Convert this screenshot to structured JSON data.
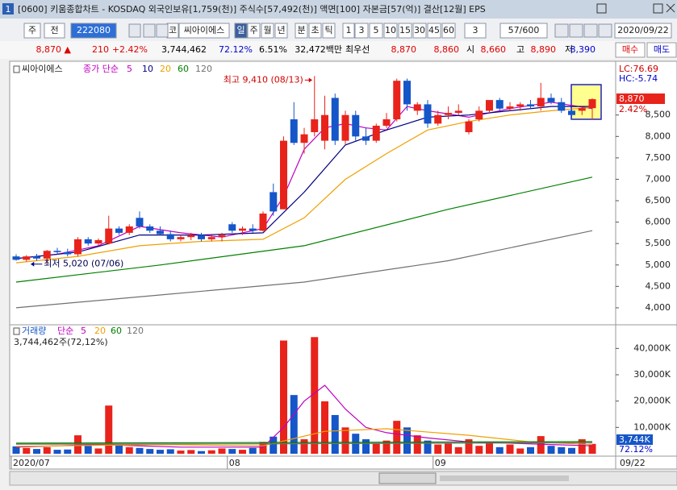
{
  "title_bar": {
    "id": "1",
    "text": "[0600] 키움종합차트 - KOSDAQ 외국인보유[1,759(천)] 주식수[57,492(천)] 액면[100] 자본금[57(억)] 결산[12월] EPS"
  },
  "toolbar": {
    "items": [
      "주",
      "전",
      "222080",
      "코",
      "씨아이에스",
      "일",
      "주",
      "월",
      "년",
      "분",
      "초",
      "틱",
      "1",
      "3",
      "5",
      "10",
      "15",
      "30",
      "45",
      "60",
      "3",
      "57/600",
      "2020/09/22"
    ],
    "selected": 5
  },
  "info": {
    "items": [
      "8,870 ▲",
      "210",
      "+2.42%",
      "3,744,462",
      "72.12%",
      "6.51%",
      "32,472백만",
      "최우선",
      "8,870",
      "8,860",
      "시",
      "8,660",
      "고",
      "8,890",
      "저",
      "8,390",
      "매수",
      "매도"
    ],
    "colors": [
      "#e00000",
      "#e00000",
      "#e00000",
      "#000000",
      "#0000d0",
      "#000000",
      "#000000",
      "#000000",
      "#e00000",
      "#e00000",
      "#000000",
      "#e00000",
      "#000000",
      "#e00000",
      "#000000",
      "#0000d0",
      "#e00000",
      "#0000d0"
    ]
  },
  "chart_data": [
    {
      "type": "candlestick",
      "name": "씨아이에스",
      "ma_label": "종가 단순",
      "categories": [
        "2020/07",
        null,
        null,
        null,
        null,
        null,
        null,
        null,
        null,
        null,
        null,
        null,
        null,
        null,
        null,
        null,
        null,
        null,
        null,
        null,
        null,
        "08",
        null,
        null,
        null,
        null,
        null,
        null,
        null,
        null,
        null,
        null,
        null,
        null,
        null,
        null,
        null,
        null,
        null,
        null,
        null,
        "09",
        null,
        null,
        null,
        null,
        null,
        null,
        null,
        null,
        null,
        null,
        null,
        null,
        null,
        null,
        null
      ],
      "last_date": "09/22",
      "open": [
        5200,
        5120,
        5200,
        5150,
        5330,
        5300,
        5250,
        5600,
        5500,
        5500,
        5850,
        5750,
        6100,
        5900,
        5800,
        5720,
        5600,
        5650,
        5700,
        5600,
        5650,
        5950,
        5800,
        5850,
        5800,
        6700,
        6300,
        8400,
        7850,
        8100,
        7900,
        8900,
        7900,
        8500,
        8000,
        7900,
        8250,
        8400,
        9300,
        8600,
        8750,
        8300,
        8500,
        8550,
        8100,
        8400,
        8600,
        8850,
        8650,
        8700,
        8750,
        8700,
        8900,
        8800,
        8600,
        8600,
        8660
      ],
      "high": [
        5250,
        5230,
        5260,
        5350,
        5400,
        5380,
        5650,
        5650,
        5620,
        6150,
        5900,
        5950,
        6250,
        5950,
        5900,
        5800,
        5700,
        5750,
        5750,
        5700,
        5750,
        6000,
        5900,
        5950,
        6250,
        6900,
        8000,
        8800,
        8200,
        9410,
        8950,
        9000,
        8600,
        8600,
        8200,
        8300,
        8550,
        9350,
        9350,
        8800,
        8850,
        8600,
        8700,
        8750,
        8400,
        8700,
        8850,
        8900,
        8800,
        8800,
        8850,
        9250,
        9000,
        8900,
        8700,
        8700,
        8890
      ],
      "low": [
        5100,
        5080,
        5100,
        5020,
        5250,
        5200,
        5200,
        5450,
        5450,
        5480,
        5700,
        5700,
        5850,
        5750,
        5700,
        5550,
        5550,
        5580,
        5550,
        5550,
        5550,
        5750,
        5700,
        5750,
        5780,
        6150,
        6300,
        7800,
        7600,
        8000,
        7700,
        7800,
        7800,
        7900,
        7800,
        7850,
        8200,
        8350,
        8600,
        8500,
        8200,
        8250,
        8400,
        8500,
        8050,
        8350,
        8550,
        8600,
        8600,
        8600,
        8650,
        8600,
        8750,
        8550,
        8400,
        8500,
        8390
      ],
      "close": [
        5120,
        5200,
        5150,
        5330,
        5300,
        5250,
        5600,
        5500,
        5580,
        5850,
        5750,
        5900,
        5900,
        5800,
        5720,
        5600,
        5650,
        5700,
        5600,
        5650,
        5700,
        5800,
        5850,
        5800,
        6200,
        6250,
        7900,
        7850,
        8050,
        8400,
        8500,
        7900,
        8500,
        8000,
        7900,
        8250,
        8400,
        9300,
        8750,
        8750,
        8300,
        8500,
        8550,
        8600,
        8350,
        8600,
        8850,
        8650,
        8700,
        8750,
        8700,
        8900,
        8800,
        8600,
        8500,
        8660,
        8870
      ],
      "up_color": "#e8231b",
      "down_color": "#1556c8",
      "ma": [
        {
          "name": "5",
          "color": "#c000c0",
          "x": [
            0,
            4,
            8,
            12,
            16,
            20,
            24,
            26,
            28,
            30,
            32,
            34,
            36,
            38,
            40,
            44,
            48,
            52,
            56
          ],
          "values": [
            5150,
            5250,
            5450,
            5900,
            5750,
            5650,
            5850,
            6600,
            7700,
            8200,
            8300,
            8200,
            8150,
            8700,
            8600,
            8450,
            8650,
            8800,
            8650
          ]
        },
        {
          "name": "10",
          "color": "#000080",
          "x": [
            0,
            6,
            12,
            18,
            24,
            28,
            32,
            36,
            40,
            44,
            48,
            52,
            56
          ],
          "values": [
            5150,
            5300,
            5700,
            5700,
            5750,
            6700,
            7800,
            8150,
            8450,
            8500,
            8600,
            8700,
            8700
          ]
        },
        {
          "name": "20",
          "color": "#f0a000",
          "x": [
            0,
            6,
            12,
            18,
            24,
            28,
            32,
            36,
            40,
            44,
            48,
            52,
            56
          ],
          "values": [
            5050,
            5200,
            5450,
            5550,
            5600,
            6100,
            7000,
            7600,
            8150,
            8350,
            8500,
            8600,
            8680
          ]
        },
        {
          "name": "60",
          "color": "#008000",
          "x": [
            0,
            14,
            28,
            42,
            56
          ],
          "values": [
            4600,
            5000,
            5450,
            6300,
            7050
          ]
        },
        {
          "name": "120",
          "color": "#707070",
          "x": [
            0,
            14,
            28,
            42,
            56
          ],
          "values": [
            4000,
            4300,
            4600,
            5100,
            5800
          ]
        }
      ],
      "ylim": [
        3660,
        9680
      ],
      "yticks": [
        {
          "value": 4000,
          "label": "4,000"
        },
        {
          "value": 4500,
          "label": "4,500"
        },
        {
          "value": 5000,
          "label": "5,000"
        },
        {
          "value": 5500,
          "label": "5,500"
        },
        {
          "value": 6000,
          "label": "6,000"
        },
        {
          "value": 6500,
          "label": "6,500"
        },
        {
          "value": 7000,
          "label": "7,000"
        },
        {
          "value": 7500,
          "label": "7,500"
        },
        {
          "value": 8000,
          "label": "8,000"
        },
        {
          "value": 8500,
          "label": "8,500"
        }
      ],
      "grid": false,
      "high_label": "최고 9,410 (08/13)",
      "high_index": 29,
      "low_label": "최저 5,020 (07/06)",
      "low_index": 3,
      "right_labels": {
        "lc": "LC:76.69",
        "hc": "HC:-5.74",
        "price": "8,870",
        "change": "2.42%"
      }
    },
    {
      "type": "bar",
      "name": "거래량",
      "ma_label": "단순",
      "summary": "3,744,462주(72,12%)",
      "values": [
        2800,
        2200,
        1800,
        2500,
        1500,
        1600,
        7000,
        3000,
        2000,
        18300,
        3500,
        2500,
        2200,
        1800,
        1500,
        1700,
        1200,
        1400,
        1000,
        1300,
        2000,
        1800,
        1500,
        2200,
        4500,
        6500,
        43000,
        22300,
        5500,
        44300,
        19900,
        14700,
        10000,
        7600,
        5500,
        4000,
        5000,
        12500,
        10000,
        7000,
        5000,
        3500,
        4000,
        2500,
        5500,
        3000,
        4000,
        2500,
        3500,
        2000,
        2500,
        6700,
        3000,
        2500,
        2200,
        5500,
        3744
      ],
      "ma": [
        {
          "name": "5",
          "color": "#c000c0",
          "x": [
            0,
            8,
            16,
            24,
            26,
            28,
            30,
            32,
            34,
            36,
            40,
            44,
            48,
            52,
            56
          ],
          "values": [
            2500,
            3500,
            2500,
            2500,
            10000,
            20000,
            26000,
            17000,
            10000,
            8000,
            6000,
            4500,
            4000,
            3500,
            3000
          ]
        },
        {
          "name": "20",
          "color": "#f0a000",
          "x": [
            0,
            14,
            24,
            30,
            36,
            44,
            50,
            56
          ],
          "values": [
            2800,
            3500,
            3000,
            8500,
            9500,
            7000,
            4500,
            3500
          ]
        },
        {
          "name": "60",
          "color": "#008000",
          "x": [
            0,
            28,
            56
          ],
          "values": [
            4000,
            4300,
            4600
          ]
        },
        {
          "name": "120",
          "color": "#707070",
          "x": [
            0,
            28,
            56
          ],
          "values": [
            3600,
            3800,
            4200
          ]
        }
      ],
      "ylim": [
        0,
        45000
      ],
      "yticks": [
        {
          "value": 10000,
          "label": "10,000K"
        },
        {
          "value": 20000,
          "label": "20,000K"
        },
        {
          "value": 30000,
          "label": "30,000K"
        },
        {
          "value": 40000,
          "label": "40,000K"
        }
      ],
      "right_labels": {
        "volume": "3,744K",
        "ratio": "72.12%"
      }
    }
  ]
}
